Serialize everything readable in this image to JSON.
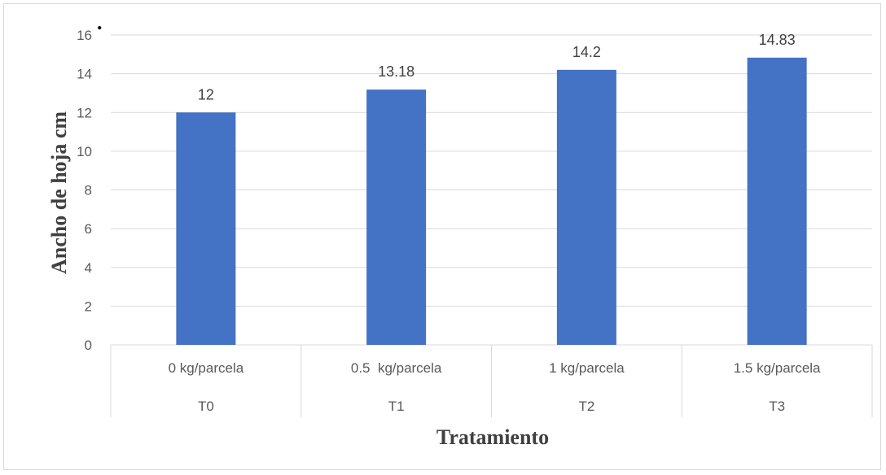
{
  "chart_data": {
    "type": "bar",
    "title": "",
    "ylabel": "Ancho de hoja cm",
    "xlabel": "Tratamiento",
    "ylim": [
      0,
      16
    ],
    "yticks": [
      0,
      2,
      4,
      6,
      8,
      10,
      12,
      14,
      16
    ],
    "grid": true,
    "legend": "none",
    "bar_color": "#4472c4",
    "categories": [
      {
        "dose": "0 kg/parcela",
        "group": "T0"
      },
      {
        "dose": "0.5  kg/parcela",
        "group": "T1"
      },
      {
        "dose": "1 kg/parcela",
        "group": "T2"
      },
      {
        "dose": "1.5 kg/parcela",
        "group": "T3"
      }
    ],
    "values": [
      12,
      13.18,
      14.2,
      14.83
    ],
    "data_labels": [
      "12",
      "13.18",
      "14.2",
      "14.83"
    ],
    "mark": "."
  }
}
